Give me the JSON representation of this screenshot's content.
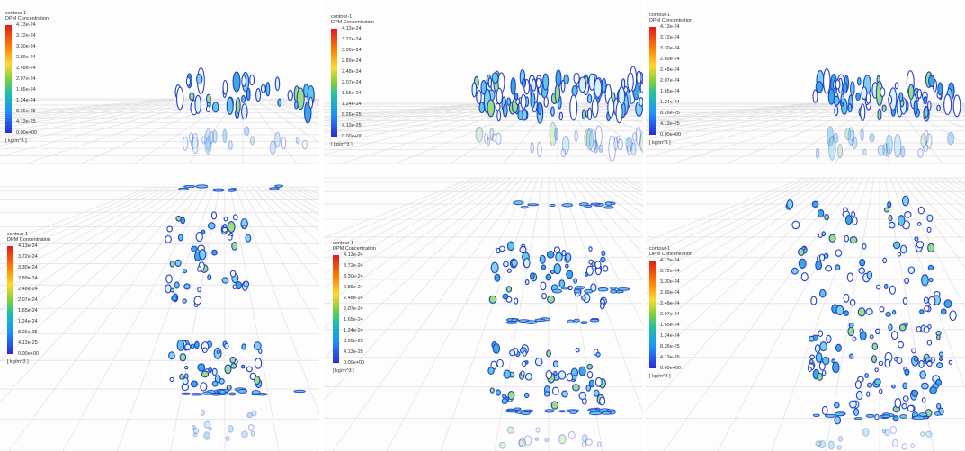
{
  "legend": {
    "title": "contour-1",
    "subtitle": "DPM Concentration",
    "ticks": [
      "4.13e-24",
      "3.72e-24",
      "3.30e-24",
      "2.89e-24",
      "2.48e-24",
      "2.07e-24",
      "1.65e-24",
      "1.24e-24",
      "8.26e-25",
      "4.13e-25",
      "0.00e+00"
    ],
    "unit": "[ kg/m^3 ]"
  },
  "colors": {
    "max": "#e31a1c",
    "mid": "#7fd13b",
    "min": "#2b2bd9",
    "particle_outline": "#2440c8",
    "particle_fill": "#5ec8e6",
    "grid": "#dcdcdc"
  }
}
